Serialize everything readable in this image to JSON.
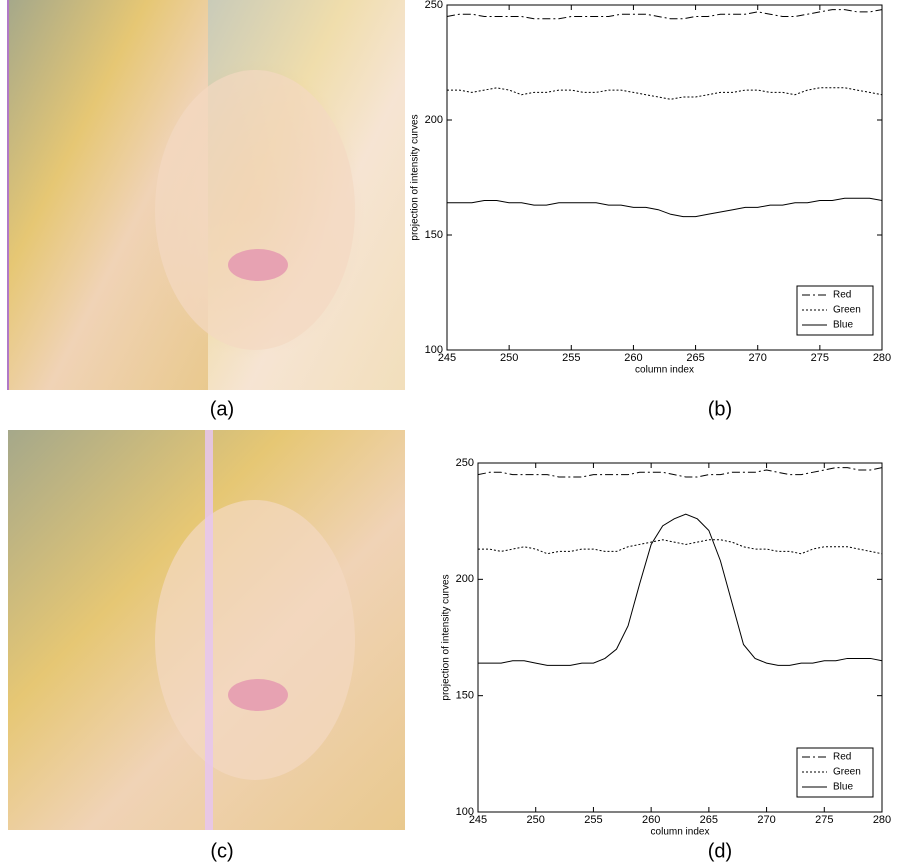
{
  "figure": {
    "captions": [
      "(a)",
      "(b)",
      "(c)",
      "(d)"
    ]
  },
  "chart_data": [
    {
      "type": "line",
      "xlabel": "column index",
      "ylabel": "projection of intensity curves",
      "x": [
        245,
        246,
        247,
        248,
        249,
        250,
        251,
        252,
        253,
        254,
        255,
        256,
        257,
        258,
        259,
        260,
        261,
        262,
        263,
        264,
        265,
        266,
        267,
        268,
        269,
        270,
        271,
        272,
        273,
        274,
        275,
        276,
        277,
        278,
        279,
        280
      ],
      "xlim": [
        245,
        280
      ],
      "xticks": [
        245,
        250,
        255,
        260,
        265,
        270,
        275,
        280
      ],
      "ylim": [
        100,
        250
      ],
      "yticks": [
        100,
        150,
        200,
        250
      ],
      "legend": "lower right",
      "series": [
        {
          "name": "Red",
          "color": "#000000",
          "dash": "dashdot",
          "values": [
            245,
            246,
            246,
            245,
            245,
            245,
            245,
            244,
            244,
            244,
            245,
            245,
            245,
            245,
            246,
            246,
            246,
            245,
            244,
            244,
            245,
            245,
            246,
            246,
            246,
            247,
            246,
            245,
            245,
            246,
            247,
            248,
            248,
            247,
            247,
            248
          ]
        },
        {
          "name": "Green",
          "color": "#000000",
          "dash": "dotted",
          "values": [
            213,
            213,
            212,
            213,
            214,
            213,
            211,
            212,
            212,
            213,
            213,
            212,
            212,
            213,
            213,
            212,
            211,
            210,
            209,
            210,
            210,
            211,
            212,
            212,
            213,
            213,
            212,
            212,
            211,
            213,
            214,
            214,
            214,
            213,
            212,
            211
          ]
        },
        {
          "name": "Blue",
          "color": "#000000",
          "dash": "solid",
          "values": [
            164,
            164,
            164,
            165,
            165,
            164,
            164,
            163,
            163,
            164,
            164,
            164,
            164,
            163,
            163,
            162,
            162,
            161,
            159,
            158,
            158,
            159,
            160,
            161,
            162,
            162,
            163,
            163,
            164,
            164,
            165,
            165,
            166,
            166,
            166,
            165
          ]
        }
      ]
    },
    {
      "type": "line",
      "xlabel": "column index",
      "ylabel": "projection of intensity curves",
      "x": [
        245,
        246,
        247,
        248,
        249,
        250,
        251,
        252,
        253,
        254,
        255,
        256,
        257,
        258,
        259,
        260,
        261,
        262,
        263,
        264,
        265,
        266,
        267,
        268,
        269,
        270,
        271,
        272,
        273,
        274,
        275,
        276,
        277,
        278,
        279,
        280
      ],
      "xlim": [
        245,
        280
      ],
      "xticks": [
        245,
        250,
        255,
        260,
        265,
        270,
        275,
        280
      ],
      "ylim": [
        100,
        250
      ],
      "yticks": [
        100,
        150,
        200,
        250
      ],
      "legend": "lower right",
      "series": [
        {
          "name": "Red",
          "color": "#000000",
          "dash": "dashdot",
          "values": [
            245,
            246,
            246,
            245,
            245,
            245,
            245,
            244,
            244,
            244,
            245,
            245,
            245,
            245,
            246,
            246,
            246,
            245,
            244,
            244,
            245,
            245,
            246,
            246,
            246,
            247,
            246,
            245,
            245,
            246,
            247,
            248,
            248,
            247,
            247,
            248
          ]
        },
        {
          "name": "Green",
          "color": "#000000",
          "dash": "dotted",
          "values": [
            213,
            213,
            212,
            213,
            214,
            213,
            211,
            212,
            212,
            213,
            213,
            212,
            212,
            214,
            215,
            216,
            217,
            216,
            215,
            216,
            217,
            217,
            216,
            214,
            213,
            213,
            212,
            212,
            211,
            213,
            214,
            214,
            214,
            213,
            212,
            211
          ]
        },
        {
          "name": "Blue",
          "color": "#000000",
          "dash": "solid",
          "values": [
            164,
            164,
            164,
            165,
            165,
            164,
            163,
            163,
            163,
            164,
            164,
            166,
            170,
            180,
            198,
            215,
            223,
            226,
            228,
            226,
            221,
            208,
            190,
            172,
            166,
            164,
            163,
            163,
            164,
            164,
            165,
            165,
            166,
            166,
            166,
            165
          ]
        }
      ]
    }
  ]
}
